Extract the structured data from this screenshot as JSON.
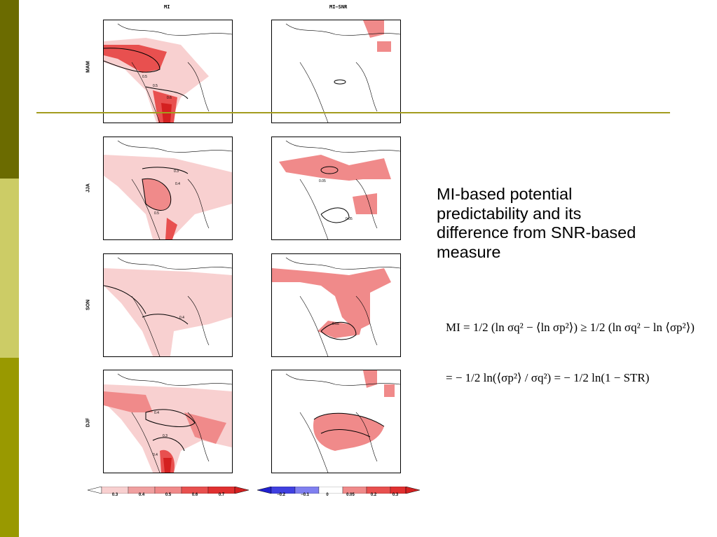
{
  "slide": {
    "title": "MI-based potential predictability and its difference from SNR-based measure",
    "columns": [
      "MI",
      "MI−SNR"
    ],
    "seasons": [
      "MAM",
      "JJA",
      "SON",
      "DJF"
    ],
    "colorbar_mi": {
      "ticks": [
        "0.3",
        "0.4",
        "0.5",
        "0.6",
        "0.7"
      ]
    },
    "colorbar_diff": {
      "ticks": [
        "−0.2",
        "−0.1",
        "0",
        "0.05",
        "0.2",
        "0.3"
      ]
    },
    "contour_labels": {
      "mam_mi": [
        "0.5",
        "0.5",
        "0.6"
      ],
      "jja_mi": [
        "0.3",
        "0.4",
        "0.5"
      ],
      "jja_diff": [
        "0.05",
        "0.05"
      ],
      "son_mi": [
        "0.4"
      ],
      "son_diff": [
        "0.05"
      ],
      "djf_mi": [
        "0.4",
        "0.3",
        "0.4"
      ]
    },
    "equation_line1": "MI = 1/2 (ln σq² − ⟨ln σp²⟩) ≥ 1/2 (ln σq² − ln ⟨σp²⟩)",
    "equation_line2": "= − 1/2 ln(⟨σp²⟩ / σq²) = − 1/2 ln(1 − STR)"
  },
  "colors": {
    "bar_dark": "#6b6b00",
    "bar_light": "#cccc66",
    "bar_mid": "#999900",
    "rule": "#a39c1e",
    "red_light": "#f8d0d0",
    "red_mid": "#f08a8a",
    "red_strong": "#e8504f",
    "red_dark": "#d42020",
    "blue_dark": "#2020d0",
    "blue_light": "#8080f0"
  },
  "icons": [
    "north-america-map"
  ]
}
